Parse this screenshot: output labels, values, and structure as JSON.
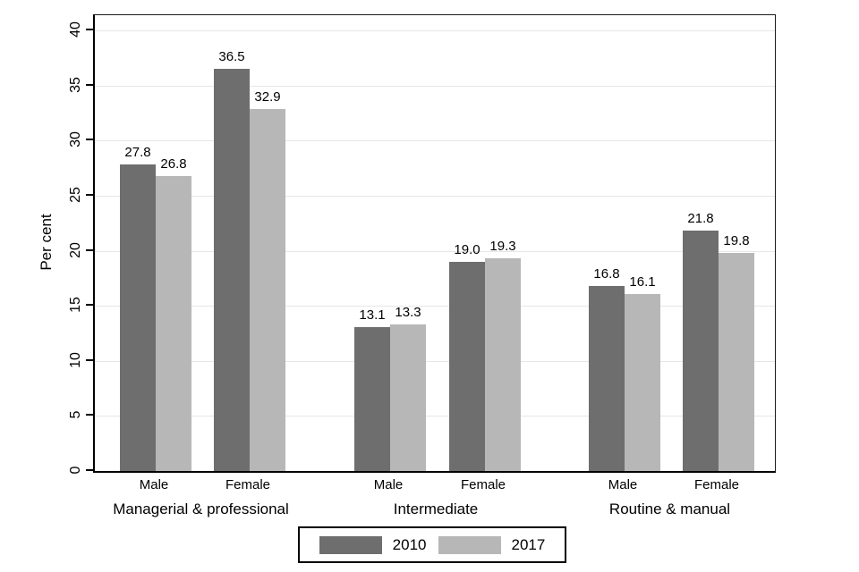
{
  "chart_data": {
    "type": "bar",
    "title": "",
    "ylabel": "Per cent",
    "xlabel": "",
    "ylim": [
      0,
      40
    ],
    "yticks": [
      0,
      5,
      10,
      15,
      20,
      25,
      30,
      35,
      40
    ],
    "grid": true,
    "legend_position": "bottom-center",
    "group_labels": [
      "Managerial & professional",
      "Intermediate",
      "Routine & manual"
    ],
    "categories": [
      "Male",
      "Female",
      "Male",
      "Female",
      "Male",
      "Female"
    ],
    "category_group_index": [
      0,
      0,
      1,
      1,
      2,
      2
    ],
    "series": [
      {
        "name": "2010",
        "color": "#6e6e6e",
        "values": [
          27.8,
          36.5,
          13.1,
          19.0,
          16.8,
          21.8
        ]
      },
      {
        "name": "2017",
        "color": "#b7b7b7",
        "values": [
          26.8,
          32.9,
          13.3,
          19.3,
          16.1,
          19.8
        ]
      }
    ],
    "value_label_decimals": 1,
    "colors": {
      "axis": "#000000",
      "gridline": "#e6e6e6",
      "text": "#000000",
      "background": "#ffffff"
    }
  }
}
